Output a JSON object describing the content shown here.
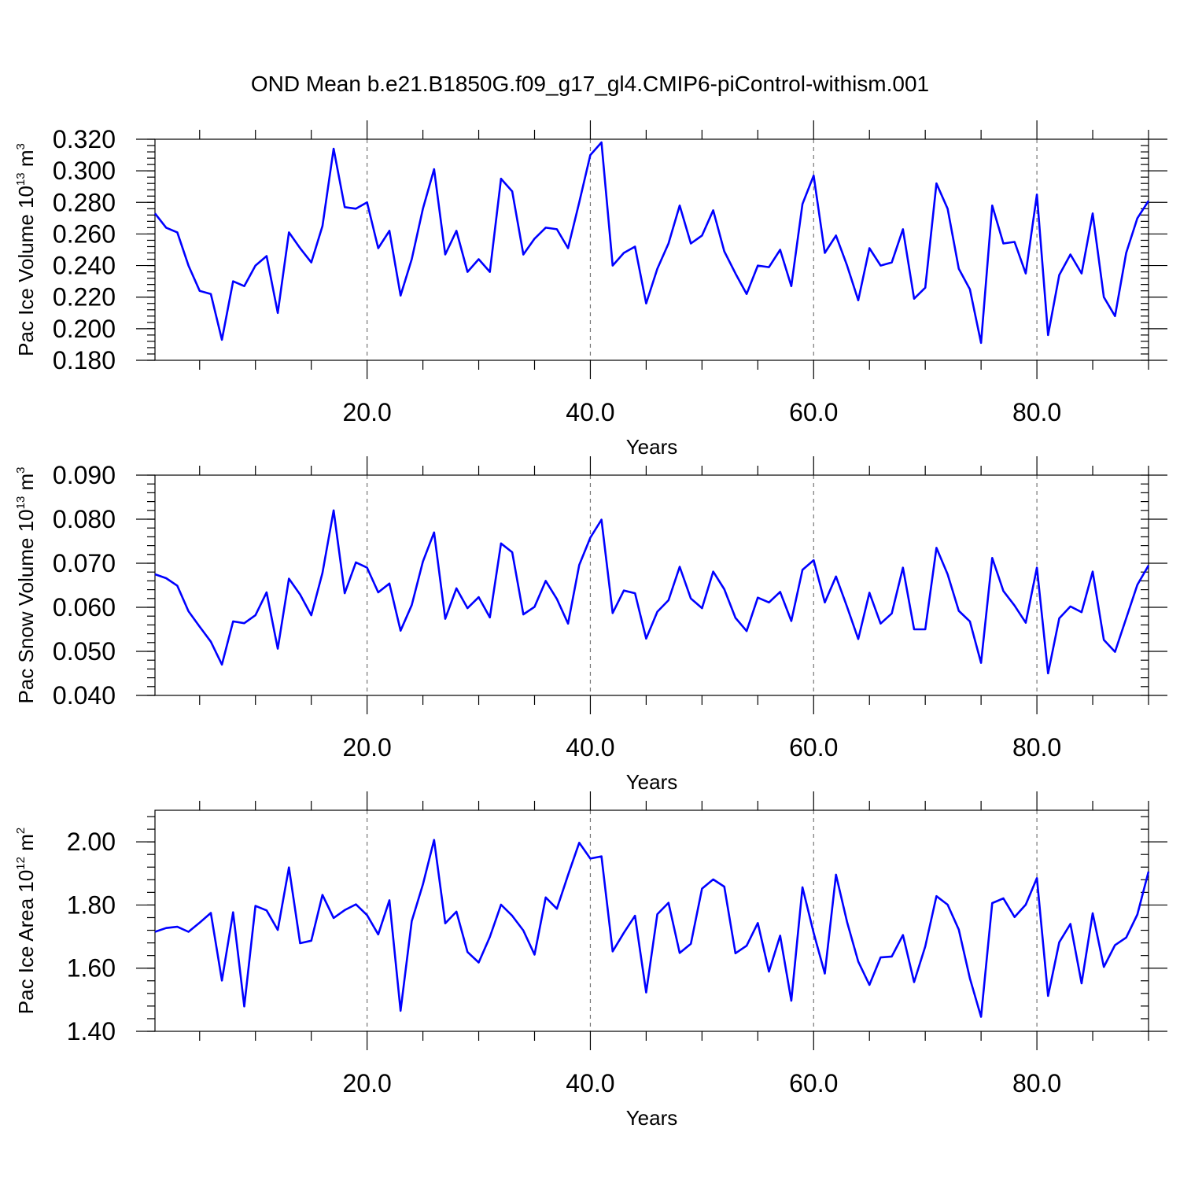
{
  "title": "OND Mean b.e21.B1850G.f09_g17_gl4.CMIP6-piControl-withism.001",
  "colors": {
    "series": "#0000ff",
    "grid": "#777777",
    "axis": "#000000"
  },
  "chart_data": [
    {
      "type": "line",
      "xlabel": "Years",
      "ylabel_main": "Pac Ice Volume 10",
      "ylabel_exp": "13",
      "ylabel_unit": " m",
      "ylabel_unit_exp": "3",
      "xlim": [
        1,
        90
      ],
      "ylim": [
        0.18,
        0.32
      ],
      "yticks": [
        "0.180",
        "0.200",
        "0.220",
        "0.240",
        "0.260",
        "0.280",
        "0.300",
        "0.320"
      ],
      "xticks": [
        "20.0",
        "40.0",
        "60.0",
        "80.0"
      ],
      "grid": "vertical dashed at major x ticks",
      "x": [
        1,
        2,
        3,
        4,
        5,
        6,
        7,
        8,
        9,
        10,
        11,
        12,
        13,
        14,
        15,
        16,
        17,
        18,
        19,
        20,
        21,
        22,
        23,
        24,
        25,
        26,
        27,
        28,
        29,
        30,
        31,
        32,
        33,
        34,
        35,
        36,
        37,
        38,
        39,
        40,
        41,
        42,
        43,
        44,
        45,
        46,
        47,
        48,
        49,
        50,
        51,
        52,
        53,
        54,
        55,
        56,
        57,
        58,
        59,
        60,
        61,
        62,
        63,
        64,
        65,
        66,
        67,
        68,
        69,
        70,
        71,
        72,
        73,
        74,
        75,
        76,
        77,
        78,
        79,
        80,
        81,
        82,
        83,
        84,
        85,
        86,
        87,
        88,
        89,
        90
      ],
      "values": [
        0.273,
        0.264,
        0.261,
        0.24,
        0.224,
        0.222,
        0.193,
        0.23,
        0.227,
        0.24,
        0.246,
        0.21,
        0.261,
        0.251,
        0.242,
        0.265,
        0.314,
        0.277,
        0.276,
        0.28,
        0.251,
        0.262,
        0.221,
        0.244,
        0.276,
        0.301,
        0.247,
        0.262,
        0.236,
        0.244,
        0.236,
        0.295,
        0.287,
        0.247,
        0.257,
        0.264,
        0.263,
        0.251,
        0.28,
        0.31,
        0.318,
        0.24,
        0.248,
        0.252,
        0.216,
        0.238,
        0.254,
        0.278,
        0.254,
        0.259,
        0.275,
        0.249,
        0.235,
        0.222,
        0.24,
        0.239,
        0.25,
        0.227,
        0.279,
        0.297,
        0.248,
        0.259,
        0.24,
        0.218,
        0.251,
        0.24,
        0.242,
        0.263,
        0.219,
        0.226,
        0.292,
        0.276,
        0.238,
        0.225,
        0.191,
        0.278,
        0.254,
        0.255,
        0.235,
        0.285,
        0.196,
        0.234,
        0.247,
        0.235,
        0.273,
        0.22,
        0.208,
        0.248,
        0.27,
        0.281
      ]
    },
    {
      "type": "line",
      "xlabel": "Years",
      "ylabel_main": "Pac Snow Volume 10",
      "ylabel_exp": "13",
      "ylabel_unit": " m",
      "ylabel_unit_exp": "3",
      "xlim": [
        1,
        90
      ],
      "ylim": [
        0.04,
        0.09
      ],
      "yticks": [
        "0.040",
        "0.050",
        "0.060",
        "0.070",
        "0.080",
        "0.090"
      ],
      "xticks": [
        "20.0",
        "40.0",
        "60.0",
        "80.0"
      ],
      "grid": "vertical dashed at major x ticks",
      "x": [
        1,
        2,
        3,
        4,
        5,
        6,
        7,
        8,
        9,
        10,
        11,
        12,
        13,
        14,
        15,
        16,
        17,
        18,
        19,
        20,
        21,
        22,
        23,
        24,
        25,
        26,
        27,
        28,
        29,
        30,
        31,
        32,
        33,
        34,
        35,
        36,
        37,
        38,
        39,
        40,
        41,
        42,
        43,
        44,
        45,
        46,
        47,
        48,
        49,
        50,
        51,
        52,
        53,
        54,
        55,
        56,
        57,
        58,
        59,
        60,
        61,
        62,
        63,
        64,
        65,
        66,
        67,
        68,
        69,
        70,
        71,
        72,
        73,
        74,
        75,
        76,
        77,
        78,
        79,
        80,
        81,
        82,
        83,
        84,
        85,
        86,
        87,
        88,
        89,
        90
      ],
      "values": [
        0.0675,
        0.0666,
        0.0649,
        0.0591,
        0.0556,
        0.0522,
        0.047,
        0.0568,
        0.0564,
        0.0582,
        0.0634,
        0.0506,
        0.0665,
        0.0629,
        0.0582,
        0.0678,
        0.082,
        0.0632,
        0.0702,
        0.069,
        0.0634,
        0.0654,
        0.0547,
        0.0605,
        0.0704,
        0.077,
        0.0574,
        0.0643,
        0.0598,
        0.0623,
        0.0577,
        0.0745,
        0.0725,
        0.0584,
        0.0601,
        0.066,
        0.0619,
        0.0563,
        0.0696,
        0.0758,
        0.0799,
        0.0587,
        0.0638,
        0.0632,
        0.0529,
        0.059,
        0.0616,
        0.0692,
        0.062,
        0.0598,
        0.0681,
        0.0641,
        0.0576,
        0.0546,
        0.0622,
        0.0611,
        0.0635,
        0.0569,
        0.0685,
        0.0707,
        0.0611,
        0.067,
        0.0601,
        0.0528,
        0.0633,
        0.0563,
        0.0586,
        0.069,
        0.055,
        0.055,
        0.0735,
        0.0675,
        0.0592,
        0.0568,
        0.0474,
        0.0712,
        0.0637,
        0.0604,
        0.0565,
        0.069,
        0.045,
        0.0575,
        0.0602,
        0.0589,
        0.0681,
        0.0526,
        0.0499,
        0.0575,
        0.0651,
        0.0695
      ]
    },
    {
      "type": "line",
      "xlabel": "Years",
      "ylabel_main": "Pac Ice Area 10",
      "ylabel_exp": "12",
      "ylabel_unit": " m",
      "ylabel_unit_exp": "2",
      "xlim": [
        1,
        90
      ],
      "ylim": [
        1.4,
        2.1
      ],
      "yticks": [
        "1.40",
        "1.60",
        "1.80",
        "2.00"
      ],
      "xticks": [
        "20.0",
        "40.0",
        "60.0",
        "80.0"
      ],
      "grid": "vertical dashed at major x ticks",
      "x": [
        1,
        2,
        3,
        4,
        5,
        6,
        7,
        8,
        9,
        10,
        11,
        12,
        13,
        14,
        15,
        16,
        17,
        18,
        19,
        20,
        21,
        22,
        23,
        24,
        25,
        26,
        27,
        28,
        29,
        30,
        31,
        32,
        33,
        34,
        35,
        36,
        37,
        38,
        39,
        40,
        41,
        42,
        43,
        44,
        45,
        46,
        47,
        48,
        49,
        50,
        51,
        52,
        53,
        54,
        55,
        56,
        57,
        58,
        59,
        60,
        61,
        62,
        63,
        64,
        65,
        66,
        67,
        68,
        69,
        70,
        71,
        72,
        73,
        74,
        75,
        76,
        77,
        78,
        79,
        80,
        81,
        82,
        83,
        84,
        85,
        86,
        87,
        88,
        89,
        90
      ],
      "values": [
        1.715,
        1.727,
        1.731,
        1.715,
        1.744,
        1.775,
        1.561,
        1.777,
        1.479,
        1.797,
        1.783,
        1.721,
        1.919,
        1.679,
        1.687,
        1.832,
        1.759,
        1.784,
        1.802,
        1.768,
        1.707,
        1.815,
        1.465,
        1.749,
        1.865,
        2.006,
        1.742,
        1.779,
        1.651,
        1.618,
        1.699,
        1.801,
        1.766,
        1.719,
        1.643,
        1.824,
        1.788,
        1.895,
        1.997,
        1.947,
        1.954,
        1.653,
        1.712,
        1.766,
        1.523,
        1.771,
        1.807,
        1.648,
        1.677,
        1.852,
        1.881,
        1.858,
        1.647,
        1.671,
        1.743,
        1.589,
        1.703,
        1.497,
        1.856,
        1.712,
        1.583,
        1.896,
        1.746,
        1.621,
        1.547,
        1.634,
        1.637,
        1.705,
        1.556,
        1.669,
        1.828,
        1.801,
        1.722,
        1.568,
        1.446,
        1.806,
        1.821,
        1.762,
        1.801,
        1.885,
        1.512,
        1.682,
        1.74,
        1.552,
        1.774,
        1.604,
        1.673,
        1.697,
        1.77,
        1.906
      ]
    }
  ]
}
